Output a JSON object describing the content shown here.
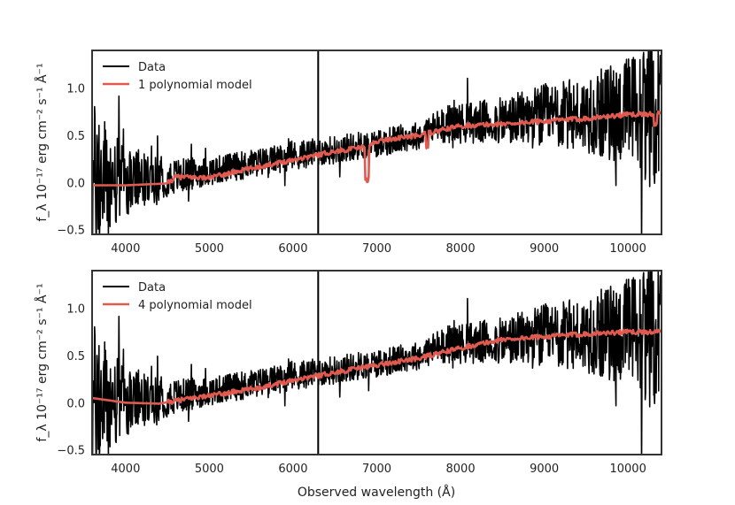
{
  "figure": {
    "xlabel": "Observed wavelength (Å)",
    "ylabel": "f_λ 10⁻¹⁷ erg cm⁻² s⁻¹ Å⁻¹",
    "colors": {
      "data": "#000000",
      "model": "#e05a4f",
      "frame": "#333333"
    }
  },
  "chart_data": [
    {
      "type": "line",
      "xlim": [
        3600,
        10400
      ],
      "ylim": [
        -0.55,
        1.4
      ],
      "xticks": [
        4000,
        5000,
        6000,
        7000,
        8000,
        9000,
        10000
      ],
      "yticks": [
        -0.5,
        0.0,
        0.5,
        1.0
      ],
      "xtick_labels": [
        "4000",
        "5000",
        "6000",
        "7000",
        "8000",
        "9000",
        "10000"
      ],
      "ytick_labels": [
        "−0.5",
        "0.0",
        "0.5",
        "1.0"
      ],
      "xlabel": "",
      "ylabel": "f_λ 10⁻¹⁷ erg cm⁻² s⁻¹ Å⁻¹",
      "legend_position": "top-left",
      "series": [
        {
          "name": "Data",
          "kind": "noisy-spectrum",
          "color": "#000000",
          "x": [
            3600,
            4000,
            4500,
            5000,
            5500,
            6000,
            6500,
            7000,
            7500,
            7800,
            8500,
            9000,
            9500,
            10000,
            10400
          ],
          "y": [
            0.0,
            0.0,
            0.05,
            0.12,
            0.2,
            0.28,
            0.35,
            0.42,
            0.5,
            0.62,
            0.65,
            0.7,
            0.72,
            0.75,
            0.75
          ],
          "noise": [
            0.9,
            0.35,
            0.2,
            0.15,
            0.15,
            0.15,
            0.15,
            0.15,
            0.15,
            0.2,
            0.25,
            0.35,
            0.4,
            0.6,
            0.9
          ]
        },
        {
          "name": "1 polynomial model",
          "color": "#e05a4f",
          "x": [
            3600,
            4000,
            4500,
            4600,
            5000,
            5500,
            6000,
            6500,
            6900,
            7000,
            7500,
            8000,
            8500,
            9000,
            9500,
            10000,
            10400
          ],
          "y": [
            -0.03,
            -0.03,
            -0.01,
            0.06,
            0.05,
            0.15,
            0.24,
            0.33,
            0.38,
            0.44,
            0.5,
            0.6,
            0.62,
            0.65,
            0.68,
            0.72,
            0.73
          ]
        }
      ]
    },
    {
      "type": "line",
      "xlim": [
        3600,
        10400
      ],
      "ylim": [
        -0.55,
        1.4
      ],
      "xticks": [
        4000,
        5000,
        6000,
        7000,
        8000,
        9000,
        10000
      ],
      "yticks": [
        -0.5,
        0.0,
        0.5,
        1.0
      ],
      "xtick_labels": [
        "4000",
        "5000",
        "6000",
        "7000",
        "8000",
        "9000",
        "10000"
      ],
      "ytick_labels": [
        "−0.5",
        "0.0",
        "0.5",
        "1.0"
      ],
      "xlabel": "Observed wavelength (Å)",
      "ylabel": "f_λ 10⁻¹⁷ erg cm⁻² s⁻¹ Å⁻¹",
      "legend_position": "top-left",
      "series": [
        {
          "name": "Data",
          "kind": "noisy-spectrum",
          "color": "#000000",
          "x": [
            3600,
            4000,
            4500,
            5000,
            5500,
            6000,
            6500,
            7000,
            7500,
            7800,
            8500,
            9000,
            9500,
            10000,
            10400
          ],
          "y": [
            0.0,
            0.0,
            0.05,
            0.12,
            0.2,
            0.28,
            0.35,
            0.42,
            0.5,
            0.62,
            0.65,
            0.7,
            0.72,
            0.75,
            0.75
          ],
          "noise": [
            0.9,
            0.35,
            0.2,
            0.15,
            0.15,
            0.15,
            0.15,
            0.15,
            0.15,
            0.2,
            0.25,
            0.35,
            0.4,
            0.6,
            0.9
          ]
        },
        {
          "name": "4 polynomial model",
          "color": "#e05a4f",
          "x": [
            3600,
            4000,
            4400,
            4800,
            5200,
            5600,
            6000,
            6500,
            7000,
            7500,
            8000,
            8500,
            9000,
            9500,
            10000,
            10400
          ],
          "y": [
            0.05,
            0.0,
            -0.01,
            0.05,
            0.1,
            0.16,
            0.24,
            0.32,
            0.4,
            0.47,
            0.58,
            0.67,
            0.7,
            0.73,
            0.75,
            0.75
          ]
        }
      ]
    }
  ]
}
